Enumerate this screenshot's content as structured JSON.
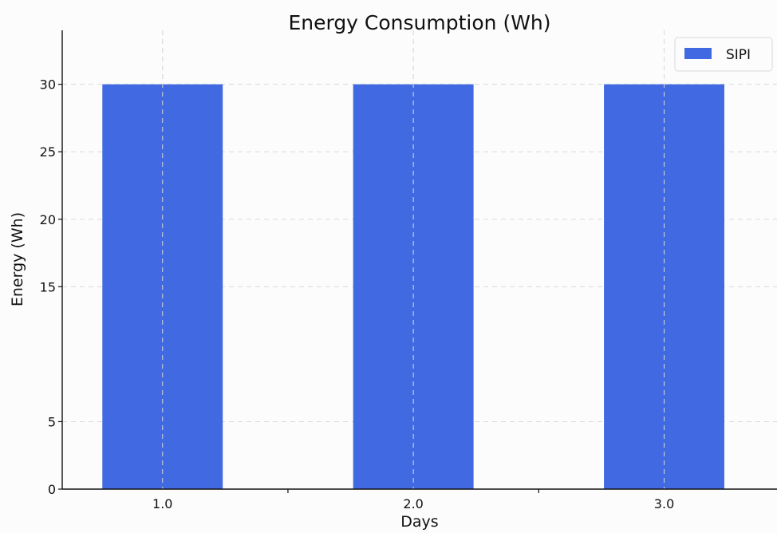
{
  "chart_data": {
    "type": "bar",
    "title": "Energy Consumption (Wh)",
    "xlabel": "Days",
    "ylabel": "Energy (Wh)",
    "categories": [
      "1.0",
      "2.0",
      "3.0"
    ],
    "x": [
      1.0,
      2.0,
      3.0
    ],
    "series": [
      {
        "name": "SIPI",
        "values": [
          30,
          30,
          30
        ],
        "color": "#4169e1"
      }
    ],
    "y_tick_labels": [
      "0",
      "5",
      "15",
      "20",
      "25",
      "30"
    ],
    "x_tick_labels": [
      "1.0",
      "2.0",
      "3.0"
    ],
    "ylim": [
      0,
      34
    ],
    "xlim": [
      0.6,
      3.45
    ],
    "bar_width": 0.48,
    "grid": true,
    "legend_position": "top-right"
  }
}
